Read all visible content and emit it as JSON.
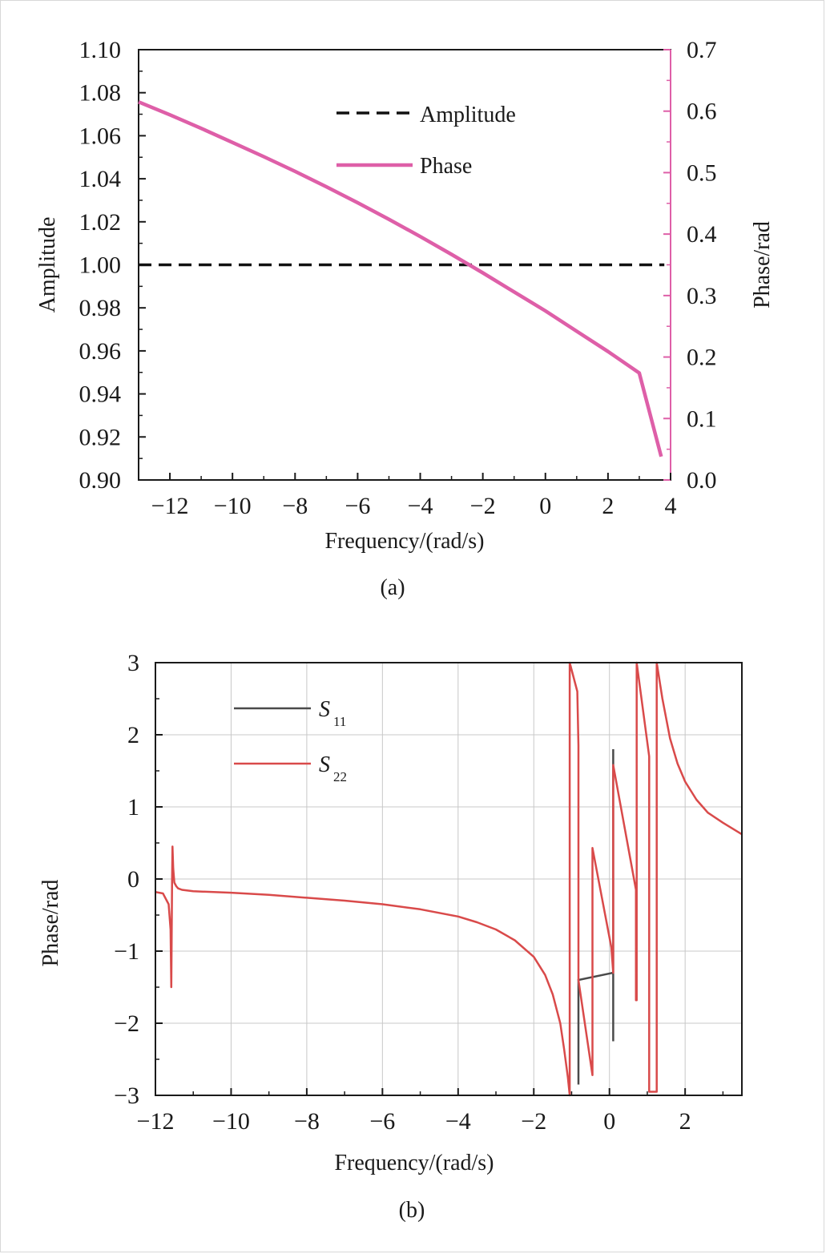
{
  "chart_data": [
    {
      "type": "line",
      "caption": "(a)",
      "xlabel": "Frequency/(rad/s)",
      "ylabel": "Amplitude",
      "y2label": "Phase/rad",
      "xlim": [
        -13,
        4
      ],
      "ylim": [
        0.9,
        1.1
      ],
      "y2lim": [
        0.0,
        0.7
      ],
      "xticks": [
        "−12",
        "−10",
        "−8",
        "−6",
        "−4",
        "−2",
        "0",
        "2",
        "4"
      ],
      "xtick_values": [
        -12,
        -10,
        -8,
        -6,
        -4,
        -2,
        0,
        2,
        4
      ],
      "yticks": [
        "0.90",
        "0.92",
        "0.94",
        "0.96",
        "0.98",
        "1.00",
        "1.02",
        "1.04",
        "1.06",
        "1.08",
        "1.10"
      ],
      "ytick_values": [
        0.9,
        0.92,
        0.94,
        0.96,
        0.98,
        1.0,
        1.02,
        1.04,
        1.06,
        1.08,
        1.1
      ],
      "y2ticks": [
        "0.0",
        "0.1",
        "0.2",
        "0.3",
        "0.4",
        "0.5",
        "0.6",
        "0.7"
      ],
      "y2tick_values": [
        0.0,
        0.1,
        0.2,
        0.3,
        0.4,
        0.5,
        0.6,
        0.7
      ],
      "legend_position": "top-center",
      "series": [
        {
          "name": "Amplitude",
          "axis": "left",
          "style": "dashed",
          "color": "#111111",
          "x": [
            -13,
            3.8
          ],
          "y": [
            1.0,
            1.0
          ]
        },
        {
          "name": "Phase",
          "axis": "right",
          "style": "solid",
          "color": "#de5fa8",
          "x": [
            -13,
            -12,
            -11,
            -10,
            -9,
            -8,
            -7,
            -6,
            -5,
            -4,
            -3,
            -2,
            -1,
            0,
            1,
            2,
            3,
            3.7
          ],
          "y": [
            0.615,
            0.594,
            0.572,
            0.549,
            0.526,
            0.502,
            0.477,
            0.451,
            0.424,
            0.396,
            0.367,
            0.337,
            0.306,
            0.275,
            0.242,
            0.209,
            0.174,
            0.038
          ]
        }
      ]
    },
    {
      "type": "line",
      "caption": "(b)",
      "xlabel": "Frequency/(rad/s)",
      "ylabel": "Phase/rad",
      "xlim": [
        -12,
        3.5
      ],
      "ylim": [
        -3,
        3
      ],
      "grid": true,
      "xticks": [
        "−12",
        "−10",
        "−8",
        "−6",
        "−4",
        "−2",
        "0",
        "2"
      ],
      "xtick_values": [
        -12,
        -10,
        -8,
        -6,
        -4,
        -2,
        0,
        2
      ],
      "yticks": [
        "−3",
        "−2",
        "−1",
        "0",
        "1",
        "2",
        "3"
      ],
      "ytick_values": [
        -3,
        -2,
        -1,
        0,
        1,
        2,
        3
      ],
      "legend_position": "top-left",
      "series": [
        {
          "name": "S",
          "sub": "11",
          "color": "#4a4a4a",
          "x": [
            -0.82,
            -0.82,
            -0.82,
            0.1,
            0.1,
            0.1
          ],
          "y": [
            -1.4,
            -2.85,
            -1.4,
            -1.3,
            1.8,
            -2.25
          ]
        },
        {
          "name": "S",
          "sub": "22",
          "color": "#d94a4a",
          "x": [
            -12,
            -11.8,
            -11.65,
            -11.6,
            -11.58,
            -11.56,
            -11.55,
            -11.53,
            -11.5,
            -11.45,
            -11.4,
            -11.3,
            -11.0,
            -10.0,
            -9.0,
            -8.0,
            -7.0,
            -6.0,
            -5.0,
            -4.0,
            -3.5,
            -3.0,
            -2.5,
            -2.0,
            -1.7,
            -1.5,
            -1.3,
            -1.2,
            -1.1,
            -1.05,
            -1.05,
            -0.85,
            -0.82,
            -0.82,
            -0.45,
            -0.45,
            0.05,
            0.1,
            0.1,
            0.7,
            0.7,
            0.72,
            0.72,
            1.05,
            1.05,
            1.25,
            1.25,
            1.4,
            1.6,
            1.8,
            2.0,
            2.3,
            2.6,
            3.0,
            3.5
          ],
          "y": [
            -0.18,
            -0.2,
            -0.35,
            -0.7,
            -1.5,
            0.0,
            0.45,
            0.15,
            -0.05,
            -0.1,
            -0.13,
            -0.15,
            -0.17,
            -0.19,
            -0.22,
            -0.26,
            -0.3,
            -0.35,
            -0.42,
            -0.52,
            -0.6,
            -0.7,
            -0.85,
            -1.08,
            -1.33,
            -1.6,
            -2.0,
            -2.35,
            -2.75,
            -3.0,
            3.0,
            2.6,
            1.85,
            -1.4,
            -2.72,
            0.43,
            -0.95,
            -1.3,
            1.58,
            -0.15,
            -1.68,
            -1.68,
            3.0,
            1.7,
            -2.95,
            -2.95,
            3.0,
            2.5,
            1.95,
            1.6,
            1.35,
            1.1,
            0.92,
            0.78,
            0.62
          ]
        }
      ]
    }
  ]
}
